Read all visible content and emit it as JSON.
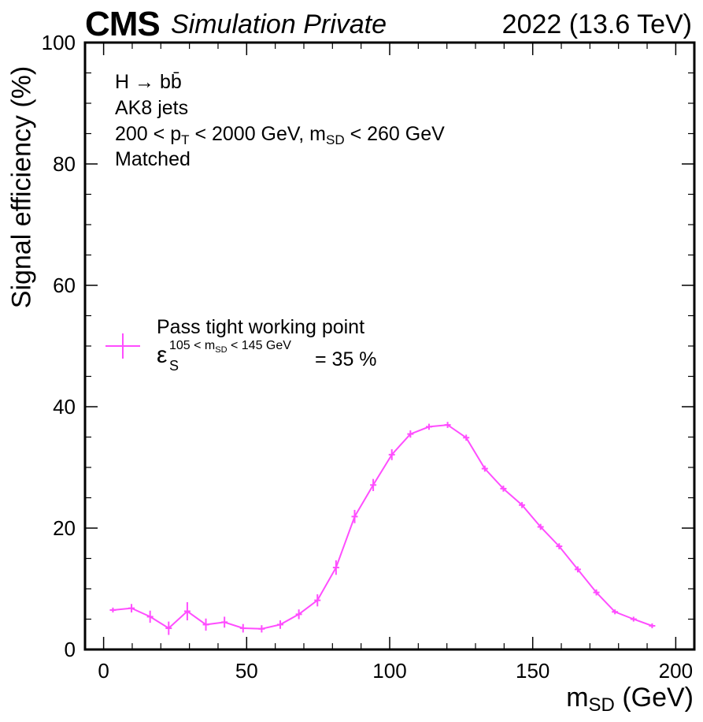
{
  "header": {
    "cms": "CMS",
    "sim": "Simulation Private",
    "lumi": "2022 (13.6 TeV)"
  },
  "annotations": {
    "line1": "H → bb̄",
    "line2": "AK8 jets",
    "line3_a": "200 < p",
    "line3_sub1": "T",
    "line3_b": " < 2000 GeV, m",
    "line3_sub2": "SD",
    "line3_c": " < 260 GeV",
    "line4": "Matched"
  },
  "legend": {
    "label": "Pass tight working point",
    "eps_symbol": "ε",
    "eps_sup": "105 < m",
    "eps_sup_sub": "SD",
    "eps_sup_rest": " < 145 GeV",
    "eps_sub": "S",
    "eps_value": "= 35 %"
  },
  "colors": {
    "series": "#ff4dff",
    "axes": "#000000"
  },
  "chart_data": {
    "type": "line",
    "xlabel_main": "m",
    "xlabel_sub": "SD",
    "xlabel_unit": " (GeV)",
    "ylabel": "Signal efficiency (%)",
    "xlim": [
      -6.5,
      206.5
    ],
    "ylim": [
      0,
      100
    ],
    "xticks": [
      0,
      50,
      100,
      150,
      200
    ],
    "yticks": [
      0,
      20,
      40,
      60,
      80,
      100
    ],
    "tick_labels_x": [
      "0",
      "50",
      "100",
      "150",
      "200"
    ],
    "tick_labels_y": [
      "0",
      "20",
      "40",
      "60",
      "80",
      "100"
    ],
    "grid": false,
    "legend_position": "center-left",
    "series": [
      {
        "name": "Pass tight working point",
        "x": [
          3.25,
          9.75,
          16.25,
          22.75,
          29.25,
          35.75,
          42.25,
          48.75,
          55.25,
          61.75,
          68.25,
          74.75,
          81.25,
          87.75,
          94.25,
          100.75,
          107.25,
          113.75,
          120.25,
          126.75,
          133.25,
          139.75,
          146.25,
          152.75,
          159.25,
          165.75,
          172.25,
          178.75,
          185.25,
          191.75
        ],
        "y": [
          6.5,
          6.8,
          5.4,
          3.5,
          6.3,
          4.1,
          4.5,
          3.5,
          3.4,
          4.1,
          5.8,
          8.1,
          13.5,
          21.9,
          27.1,
          32.1,
          35.5,
          36.7,
          37.0,
          34.9,
          29.8,
          26.5,
          23.8,
          20.2,
          17.0,
          13.2,
          9.4,
          6.2,
          5.0,
          3.9
        ],
        "yerr": [
          0.4,
          0.7,
          1.0,
          1.1,
          1.5,
          1.0,
          0.9,
          0.7,
          0.6,
          0.7,
          0.8,
          1.0,
          1.2,
          1.1,
          1.0,
          0.9,
          0.6,
          0.5,
          0.5,
          0.5,
          0.5,
          0.5,
          0.5,
          0.5,
          0.5,
          0.5,
          0.5,
          0.4,
          0.4,
          0.4
        ]
      }
    ]
  }
}
